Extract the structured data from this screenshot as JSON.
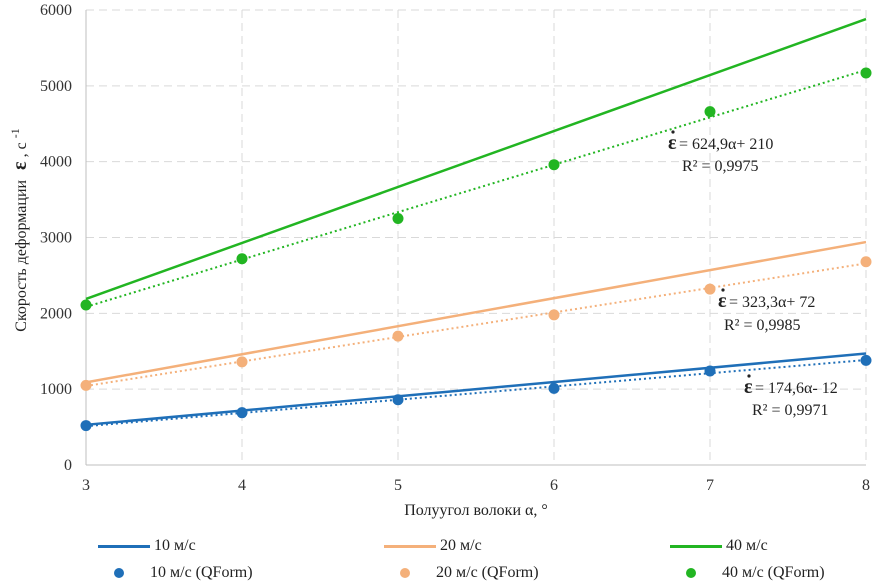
{
  "chart_data": {
    "type": "line",
    "xlabel": "Полуугол волоки α, °",
    "ylabel": "Скорость деформации",
    "ylabel_unit": ", с",
    "ylabel_exp": "-1",
    "epsilon_symbol": "ε",
    "xlim": [
      3,
      8
    ],
    "ylim": [
      0,
      6000
    ],
    "x_ticks": [
      "3",
      "4",
      "5",
      "6",
      "7",
      "8"
    ],
    "y_ticks": [
      "0",
      "1000",
      "2000",
      "3000",
      "4000",
      "5000",
      "6000"
    ],
    "grid": true,
    "legend_position": "bottom",
    "series": [
      {
        "name": "10 м/с",
        "kind": "line",
        "color": "#1f6fb8",
        "x": [
          3,
          8
        ],
        "values": [
          530,
          1470
        ]
      },
      {
        "name": "20 м/с",
        "kind": "line",
        "color": "#f4b07a",
        "x": [
          3,
          8
        ],
        "values": [
          1090,
          2940
        ]
      },
      {
        "name": "40 м/с",
        "kind": "line",
        "color": "#22b522",
        "x": [
          3,
          8
        ],
        "values": [
          2190,
          5880
        ]
      },
      {
        "name": "10 м/с (QForm)",
        "kind": "scatter",
        "color": "#1f6fb8",
        "x": [
          3,
          4,
          5,
          6,
          7,
          8
        ],
        "values": [
          520,
          690,
          860,
          1010,
          1240,
          1380
        ]
      },
      {
        "name": "20 м/с (QForm)",
        "kind": "scatter",
        "color": "#f4b07a",
        "x": [
          3,
          4,
          5,
          6,
          7,
          8
        ],
        "values": [
          1050,
          1360,
          1700,
          1980,
          2320,
          2680
        ]
      },
      {
        "name": "40 м/с (QForm)",
        "kind": "scatter",
        "color": "#22b522",
        "x": [
          3,
          4,
          5,
          6,
          7,
          8
        ],
        "values": [
          2110,
          2720,
          3250,
          3960,
          4660,
          5170
        ]
      }
    ],
    "trendlines": [
      {
        "color": "#1f6fb8",
        "slope": 174.6,
        "intercept": -12
      },
      {
        "color": "#f4b07a",
        "slope": 323.3,
        "intercept": 72
      },
      {
        "color": "#22b522",
        "slope": 624.9,
        "intercept": 210
      }
    ],
    "annotations": [
      {
        "equation": "= 624,9α+ 210",
        "r2": "R² = 0,9975"
      },
      {
        "equation": "= 323,3α+ 72",
        "r2": "R² = 0,9985"
      },
      {
        "equation": "= 174,6α- 12",
        "r2": "R² = 0,9971"
      }
    ]
  }
}
